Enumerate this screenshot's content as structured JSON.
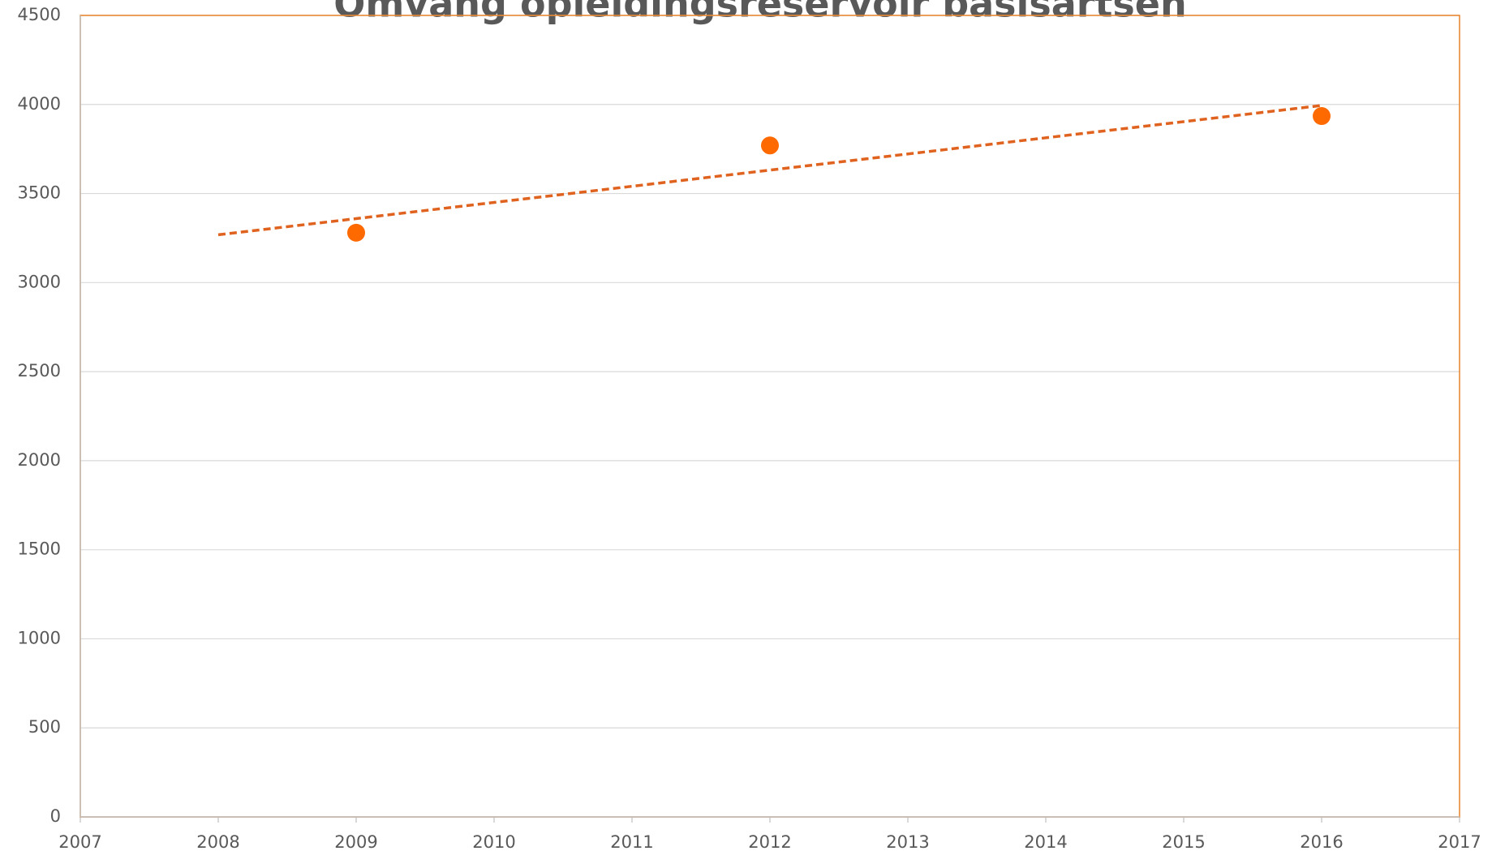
{
  "chart_data": {
    "type": "scatter",
    "title": "Omvang opleidingsreservoir basisartsen",
    "x": [
      2009,
      2012,
      2016
    ],
    "values": [
      3280,
      3770,
      3935
    ],
    "color": "#ff6a00",
    "trendline": {
      "type": "linear",
      "xlim": [
        2008,
        2016
      ],
      "color": "#e0621f"
    },
    "xlim": [
      2007,
      2017
    ],
    "xticks": [
      2007,
      2008,
      2009,
      2010,
      2011,
      2012,
      2013,
      2014,
      2015,
      2016,
      2017
    ],
    "ylim": [
      0,
      4500
    ],
    "yticks": [
      0,
      500,
      1000,
      1500,
      2000,
      2500,
      3000,
      3500,
      4000,
      4500
    ],
    "grid": true
  }
}
